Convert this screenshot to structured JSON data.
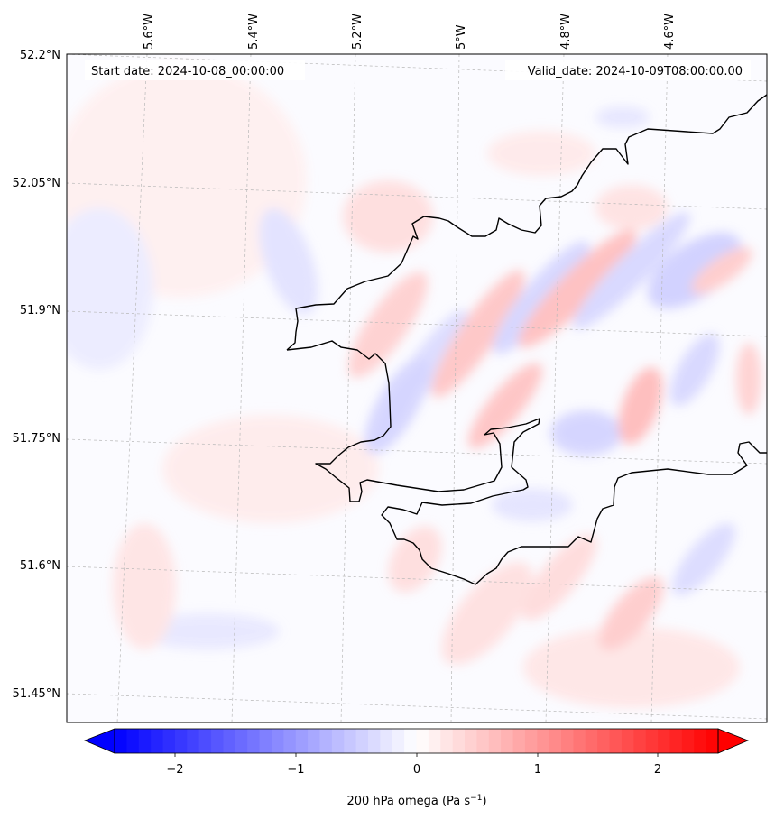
{
  "header": {
    "start_date": "Start date: 2024-10-08_00:00:00",
    "valid_date": "Valid_date: 2024-10-09T08:00:00.00"
  },
  "axes": {
    "lon_ticks": [
      "5.6°W",
      "5.4°W",
      "5.2°W",
      "5°W",
      "4.8°W",
      "4.6°W"
    ],
    "lat_ticks": [
      "52.2°N",
      "52.05°N",
      "51.9°N",
      "51.75°N",
      "51.6°N",
      "51.45°N"
    ]
  },
  "colorbar": {
    "ticks": [
      "−2",
      "−1",
      "0",
      "1",
      "2"
    ],
    "label": "200 hPa omega (Pa s",
    "label_sup": "−1",
    "label_end": ")",
    "vmin": -2.5,
    "vmax": 2.5,
    "low_color": "#0000ff",
    "mid_color": "#ffffff",
    "high_color": "#ff0000"
  },
  "colors": {
    "coastline": "#000000",
    "gridline": "#b8b8b8"
  }
}
